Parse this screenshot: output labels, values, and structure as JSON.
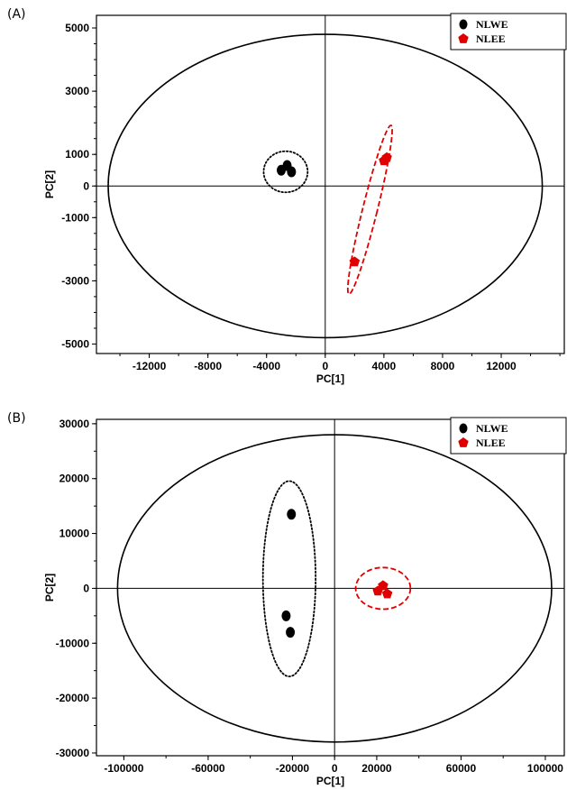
{
  "chart_data": [
    {
      "type": "scatter",
      "panel_label": "(A)",
      "xlabel": "PC[1]",
      "ylabel": "PC[2]",
      "xlim": [
        -15600,
        16300
      ],
      "ylim": [
        -5300,
        5400
      ],
      "xticks": [
        -12000,
        -8000,
        -4000,
        0,
        4000,
        8000,
        12000
      ],
      "yticks": [
        5000,
        3000,
        1000,
        0,
        -1000,
        -3000,
        -5000
      ],
      "grid": false,
      "legend_position": "top-right",
      "confidence_ellipse": {
        "cx": 0,
        "cy": 0,
        "rx": 14800,
        "ry": 4800
      },
      "series": [
        {
          "name": "NLWE",
          "color": "#000000",
          "marker": "circle",
          "points": [
            [
              -3000,
              500
            ],
            [
              -2600,
              650
            ],
            [
              -2300,
              450
            ]
          ],
          "group_ellipse": {
            "cx": -2700,
            "cy": 450,
            "rx": 1500,
            "ry": 650,
            "angle": 0,
            "style": "dotted"
          }
        },
        {
          "name": "NLEE",
          "color": "#e00000",
          "marker": "pentagon",
          "points": [
            [
              4000,
              800
            ],
            [
              4200,
              900
            ],
            [
              2000,
              -2400
            ]
          ],
          "group_ellipse": {
            "cx": 3050,
            "cy": -750,
            "rx": 500,
            "ry": 2750,
            "angle": 14,
            "style": "dashed"
          }
        }
      ]
    },
    {
      "type": "scatter",
      "panel_label": "(B)",
      "xlabel": "PC[1]",
      "ylabel": "PC[2]",
      "xlim": [
        -113000,
        109000
      ],
      "ylim": [
        -30500,
        30800
      ],
      "xticks": [
        -100000,
        -60000,
        -20000,
        0,
        20000,
        60000,
        100000
      ],
      "yticks": [
        30000,
        20000,
        10000,
        0,
        -10000,
        -20000,
        -30000
      ],
      "grid": false,
      "legend_position": "top-right",
      "confidence_ellipse": {
        "cx": 0,
        "cy": 0,
        "rx": 103000,
        "ry": 28000
      },
      "series": [
        {
          "name": "NLWE",
          "color": "#000000",
          "marker": "circle",
          "points": [
            [
              -20500,
              13500
            ],
            [
              -23000,
              -5000
            ],
            [
              -21000,
              -8000
            ]
          ],
          "group_ellipse": {
            "cx": -21500,
            "cy": 1750,
            "rx": 12500,
            "ry": 17800,
            "angle": 0,
            "style": "dotted"
          }
        },
        {
          "name": "NLEE",
          "color": "#e00000",
          "marker": "pentagon",
          "points": [
            [
              23000,
              500
            ],
            [
              20500,
              -500
            ],
            [
              25000,
              -1000
            ]
          ],
          "group_ellipse": {
            "cx": 23000,
            "cy": 0,
            "rx": 13000,
            "ry": 3800,
            "angle": 0,
            "style": "dashed"
          }
        }
      ]
    }
  ]
}
